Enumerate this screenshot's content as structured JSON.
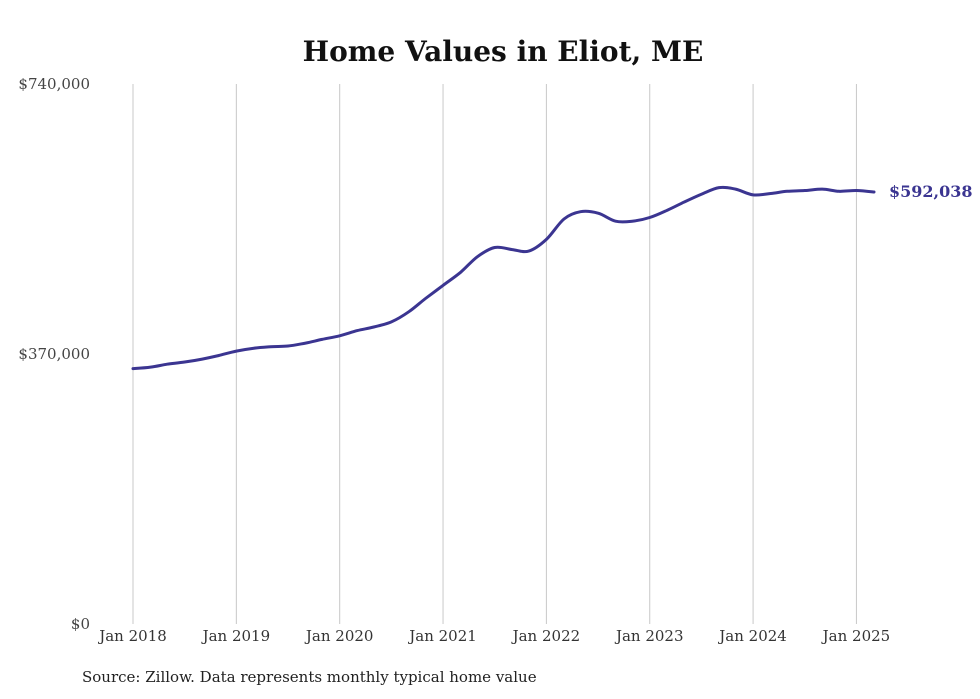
{
  "chart_data": {
    "type": "line",
    "title": "Home Values in Eliot, ME",
    "xlabel": "",
    "ylabel": "",
    "ylim": [
      0,
      740000
    ],
    "y_ticks": [
      {
        "value": 0,
        "label": "$0"
      },
      {
        "value": 370000,
        "label": "$370,000"
      },
      {
        "value": 740000,
        "label": "$740,000"
      }
    ],
    "x_ticks": [
      {
        "value": 2018,
        "label": "Jan 2018"
      },
      {
        "value": 2019,
        "label": "Jan 2019"
      },
      {
        "value": 2020,
        "label": "Jan 2020"
      },
      {
        "value": 2021,
        "label": "Jan 2021"
      },
      {
        "value": 2022,
        "label": "Jan 2022"
      },
      {
        "value": 2023,
        "label": "Jan 2023"
      },
      {
        "value": 2024,
        "label": "Jan 2024"
      },
      {
        "value": 2025,
        "label": "Jan 2025"
      }
    ],
    "grid": "vertical",
    "line_color": "#3b3591",
    "end_label": "$592,038",
    "series": [
      {
        "x": [
          2018.0,
          2018.17,
          2018.33,
          2018.5,
          2018.67,
          2018.83,
          2019.0,
          2019.17,
          2019.33,
          2019.5,
          2019.67,
          2019.83,
          2020.0,
          2020.17,
          2020.33,
          2020.5,
          2020.67,
          2020.83,
          2021.0,
          2021.17,
          2021.33,
          2021.5,
          2021.67,
          2021.83,
          2022.0,
          2022.17,
          2022.33,
          2022.5,
          2022.67,
          2022.83,
          2023.0,
          2023.17,
          2023.33,
          2023.5,
          2023.67,
          2023.83,
          2024.0,
          2024.17,
          2024.33,
          2024.5,
          2024.67,
          2024.83,
          2025.0,
          2025.17
        ],
        "y": [
          350000,
          352000,
          356000,
          359000,
          363000,
          368000,
          374000,
          378000,
          380000,
          381000,
          385000,
          390000,
          395000,
          402000,
          407000,
          414000,
          428000,
          446000,
          464000,
          482000,
          503000,
          516000,
          513000,
          511000,
          527000,
          555000,
          565000,
          563000,
          552000,
          552000,
          557000,
          567000,
          578000,
          589000,
          598000,
          596000,
          588000,
          590000,
          593000,
          594000,
          596000,
          593000,
          594000,
          592038
        ]
      }
    ]
  },
  "source": "Source: Zillow. Data represents monthly typical home value"
}
